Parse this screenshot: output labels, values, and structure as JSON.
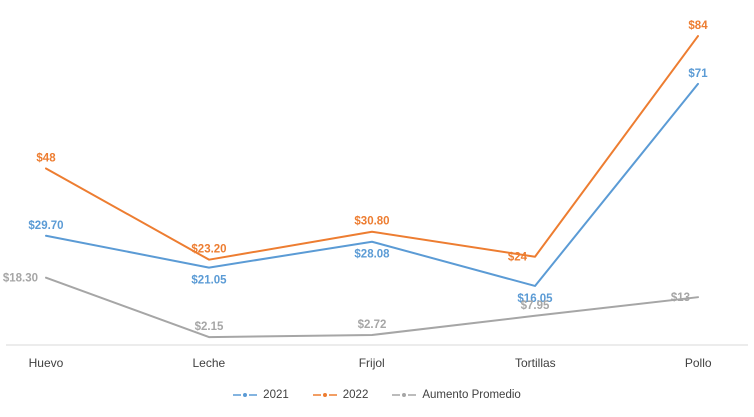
{
  "chart_data": {
    "type": "line",
    "title": "",
    "categories": [
      "Huevo",
      "Leche",
      "Frijol",
      "Tortillas",
      "Pollo"
    ],
    "series": [
      {
        "name": "2021",
        "color": "#5B9BD5",
        "values": [
          29.7,
          21.05,
          28.08,
          16.05,
          71
        ],
        "point_labels": [
          "$29.70",
          "$21.05",
          "$28.08",
          "$16.05",
          "$71"
        ],
        "label_placements": [
          "above",
          "below",
          "below",
          "below",
          "above"
        ]
      },
      {
        "name": "2022",
        "color": "#ED7D31",
        "values": [
          48,
          23.2,
          30.8,
          24,
          84
        ],
        "point_labels": [
          "$48",
          "$23.20",
          "$30.80",
          "$24",
          "$84"
        ],
        "label_placements": [
          "above",
          "above",
          "above",
          "left",
          "above"
        ]
      },
      {
        "name": "Aumento Promedio",
        "color": "#A6A6A6",
        "values": [
          18.3,
          2.15,
          2.72,
          7.95,
          13
        ],
        "point_labels": [
          "$18.30",
          "$2.15",
          "$2.72",
          "$7.95",
          "$13"
        ],
        "label_placements": [
          "left",
          "above",
          "above",
          "above",
          "left"
        ]
      }
    ],
    "ylim": [
      0,
      90
    ],
    "grid": false,
    "y_axis_visible": false,
    "legend_position": "bottom",
    "axis_color": "#D9D9D9"
  }
}
